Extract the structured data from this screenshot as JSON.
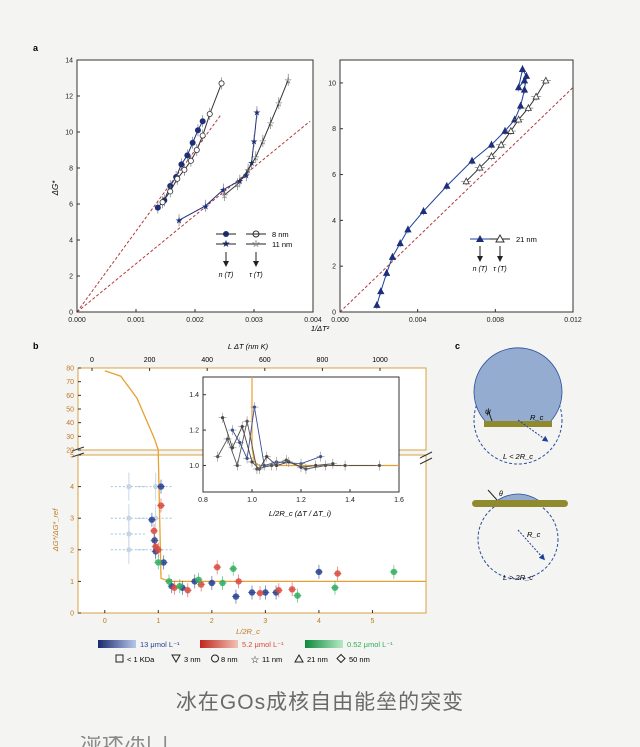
{
  "caption": "冰在GOs成核自由能垒的突变",
  "partial_line": "湿迷冻门",
  "panels": {
    "a": "a",
    "b": "b",
    "c": "c"
  },
  "chart_data": [
    {
      "id": "a-left",
      "type": "scatter",
      "xlabel": "",
      "ylabel": "ΔG*",
      "xlim": [
        0.0,
        0.004
      ],
      "ylim": [
        0,
        14
      ],
      "xticks": [
        "0.000",
        "0.001",
        "0.002",
        "0.003",
        "0.004"
      ],
      "yticks": [
        "0",
        "2",
        "4",
        "6",
        "8",
        "10",
        "12",
        "14"
      ],
      "legend": {
        "rows": [
          "8 nm",
          "11 nm"
        ],
        "cols": [
          "n (T)",
          "τ (T)"
        ]
      },
      "series": [
        {
          "name": "8 nm",
          "marker": "circle",
          "filled": true,
          "x": [
            0.00137,
            0.00148,
            0.00158,
            0.00168,
            0.00177,
            0.00187,
            0.00196,
            0.00205,
            0.00213
          ],
          "y": [
            5.8,
            6.2,
            7.0,
            7.5,
            8.2,
            8.7,
            9.4,
            10.1,
            10.6
          ]
        },
        {
          "name": "8 nm",
          "marker": "circle",
          "filled": false,
          "x": [
            0.00145,
            0.00158,
            0.0017,
            0.00182,
            0.00193,
            0.00203,
            0.00213,
            0.00225,
            0.00245
          ],
          "y": [
            6.1,
            6.7,
            7.4,
            7.9,
            8.4,
            9.0,
            9.8,
            11.0,
            12.7
          ]
        },
        {
          "name": "11 nm",
          "marker": "star",
          "filled": true,
          "x": [
            0.00173,
            0.00218,
            0.00248,
            0.00276,
            0.00287,
            0.00296,
            0.003,
            0.00305
          ],
          "y": [
            5.1,
            5.9,
            6.8,
            7.3,
            7.6,
            8.3,
            9.5,
            11.1
          ]
        },
        {
          "name": "11 nm",
          "marker": "star",
          "filled": false,
          "x": [
            0.0025,
            0.00272,
            0.0029,
            0.00303,
            0.00315,
            0.00328,
            0.00342,
            0.00358
          ],
          "y": [
            6.5,
            7.1,
            7.9,
            8.6,
            9.5,
            10.5,
            11.6,
            12.9
          ]
        }
      ],
      "reference_lines": [
        {
          "x": [
            0.0,
            0.00245
          ],
          "y": [
            0.0,
            11.0
          ]
        },
        {
          "x": [
            0.0,
            0.00395
          ],
          "y": [
            0.0,
            10.6
          ]
        }
      ]
    },
    {
      "id": "a-right",
      "type": "scatter",
      "xlabel": "1/ΔT²",
      "ylabel": "",
      "xlim": [
        0.0,
        0.012
      ],
      "ylim": [
        0,
        11
      ],
      "xticks": [
        "0.000",
        "0.004",
        "0.008",
        "0.012"
      ],
      "yticks": [
        "0",
        "2",
        "4",
        "6",
        "8",
        "10"
      ],
      "legend": {
        "rows": [
          "21 nm"
        ],
        "cols": [
          "n (T)",
          "τ (T)"
        ]
      },
      "series": [
        {
          "name": "21 nm",
          "marker": "triangle",
          "filled": true,
          "x": [
            0.0019,
            0.0021,
            0.0024,
            0.0027,
            0.0031,
            0.0035,
            0.0043,
            0.0055,
            0.0068,
            0.0078,
            0.0085,
            0.009,
            0.0093,
            0.0095,
            0.0096,
            0.0094,
            0.0092,
            0.0095
          ],
          "y": [
            0.3,
            0.9,
            1.7,
            2.4,
            3.0,
            3.6,
            4.4,
            5.5,
            6.6,
            7.3,
            7.9,
            8.4,
            9.0,
            9.7,
            10.3,
            10.6,
            9.8,
            10.1
          ]
        },
        {
          "name": "21 nm",
          "marker": "triangle",
          "filled": false,
          "x": [
            0.0065,
            0.0072,
            0.0078,
            0.0083,
            0.0088,
            0.0092,
            0.0097,
            0.0101,
            0.0106
          ],
          "y": [
            5.7,
            6.3,
            6.8,
            7.3,
            7.9,
            8.4,
            8.9,
            9.4,
            10.1
          ]
        }
      ],
      "reference_lines": [
        {
          "x": [
            0.0,
            0.012
          ],
          "y": [
            0.0,
            9.8
          ]
        }
      ]
    },
    {
      "id": "b-main",
      "type": "scatter",
      "xlabel": "L/2R_c",
      "ylabel": "ΔG*/ΔG*_ref",
      "x2label": "L ΔT (nm K)",
      "xlim": [
        -0.5,
        6.0
      ],
      "ylim_lower": [
        0,
        5
      ],
      "ylim_upper": [
        20,
        80
      ],
      "xticks": [
        "0",
        "1",
        "2",
        "3",
        "4",
        "5"
      ],
      "x2ticks": [
        "0",
        "200",
        "400",
        "600",
        "800",
        "1000"
      ],
      "yticks_lower": [
        "0",
        "1",
        "2",
        "3",
        "4",
        "5"
      ],
      "yticks_upper": [
        "20",
        "30",
        "40",
        "50",
        "60",
        "70",
        "80"
      ],
      "series": [
        {
          "name": "13 μmol L⁻¹",
          "color": "#24418f",
          "x": [
            0.88,
            0.93,
            0.95,
            1.05,
            1.1,
            1.25,
            1.45,
            1.68,
            2.0,
            2.45,
            2.75,
            3.0,
            3.2,
            4.0
          ],
          "y": [
            2.95,
            2.3,
            1.95,
            4.0,
            1.6,
            0.85,
            0.8,
            1.0,
            0.95,
            0.52,
            0.65,
            0.65,
            0.65,
            1.3
          ]
        },
        {
          "name": "5.2 μmol L⁻¹",
          "color": "#d94a3e",
          "x": [
            0.92,
            0.95,
            1.0,
            1.05,
            1.3,
            1.55,
            1.8,
            2.1,
            2.5,
            2.9,
            3.25,
            3.5,
            4.35
          ],
          "y": [
            2.6,
            2.1,
            2.0,
            3.4,
            0.8,
            0.72,
            0.9,
            1.45,
            1.0,
            0.63,
            0.72,
            0.75,
            1.25
          ]
        },
        {
          "name": "0.52 μmol L⁻¹",
          "color": "#2fae5c",
          "x": [
            1.0,
            1.2,
            1.4,
            1.75,
            2.2,
            2.4,
            3.6,
            4.3,
            5.4
          ],
          "y": [
            1.6,
            1.0,
            0.85,
            1.05,
            0.95,
            1.4,
            0.55,
            0.8,
            1.3
          ]
        }
      ],
      "faded_series": {
        "x": [
          0.45,
          0.45,
          0.45,
          0.45,
          0.95,
          0.95,
          0.95
        ],
        "y": [
          4.0,
          3.0,
          2.5,
          2.0,
          4.0,
          3.0,
          2.0
        ]
      },
      "theory_curve": {
        "x": [
          0.0,
          0.3,
          0.6,
          0.8,
          0.93,
          1.0,
          1.0,
          1.05,
          1.2,
          6.0
        ],
        "y": [
          78,
          74,
          58,
          40,
          28,
          20,
          5,
          1.1,
          1.0,
          1.0
        ]
      },
      "legend_concentration": [
        "13 μmol L⁻¹",
        "5.2 μmol L⁻¹",
        "0.52 μmol L⁻¹"
      ],
      "legend_size": [
        "< 1 KDa",
        "3 nm",
        "8 nm",
        "11 nm",
        "21 nm",
        "50 nm"
      ]
    },
    {
      "id": "b-inset",
      "type": "line",
      "xlabel": "L/2R_c (ΔT / ΔT_i)",
      "ylabel": "",
      "xlim": [
        0.8,
        1.6
      ],
      "ylim": [
        0.85,
        1.5
      ],
      "xticks": [
        "0.8",
        "1.0",
        "1.2",
        "1.4",
        "1.6"
      ],
      "yticks": [
        "1.0",
        "1.2",
        "1.4"
      ],
      "theory_curve": {
        "x": [
          1.0,
          1.0,
          1.01,
          1.03,
          1.6
        ],
        "y": [
          1.5,
          1.1,
          1.02,
          1.0,
          1.0
        ]
      },
      "series": [
        {
          "name": "blue",
          "color": "#3a4f95",
          "x": [
            0.92,
            0.95,
            0.98,
            1.01,
            1.05,
            1.1,
            1.2,
            1.28
          ],
          "y": [
            1.2,
            1.13,
            1.04,
            1.33,
            1.0,
            1.02,
            1.01,
            1.05
          ]
        },
        {
          "name": "black-1",
          "color": "#444444",
          "x": [
            0.88,
            0.92,
            0.96,
            1.0,
            1.03,
            1.06,
            1.1,
            1.15,
            1.2,
            1.26,
            1.33
          ],
          "y": [
            1.27,
            1.1,
            1.22,
            1.02,
            0.98,
            1.05,
            1.0,
            1.02,
            0.99,
            1.0,
            1.01
          ]
        },
        {
          "name": "black-2",
          "color": "#555555",
          "x": [
            0.86,
            0.9,
            0.94,
            0.98,
            1.02,
            1.08,
            1.14,
            1.22,
            1.3,
            1.38,
            1.52
          ],
          "y": [
            1.05,
            1.15,
            1.0,
            1.25,
            0.98,
            1.0,
            1.03,
            0.98,
            1.0,
            1.0,
            1.0
          ]
        }
      ]
    }
  ],
  "panel_c": {
    "top_label": "L < 2R_c",
    "bottom_label": "L > 2R_c",
    "rc": "R_c",
    "psi": "ψ",
    "theta": "θ"
  }
}
